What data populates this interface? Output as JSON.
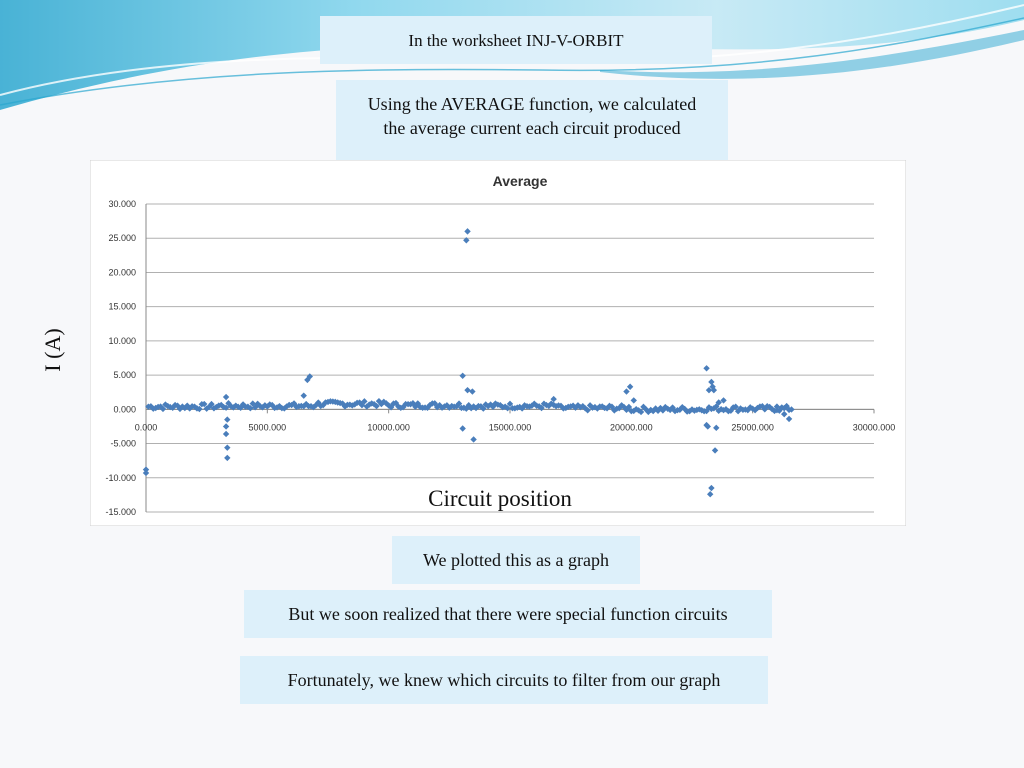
{
  "slide": {
    "header": "In the worksheet INJ-V-ORBIT",
    "description_line1": "Using the AVERAGE function, we calculated",
    "description_line2": "the average current each circuit produced",
    "plotted": "We plotted this as a graph",
    "special": "But we soon realized that there were special function circuits",
    "filter": "Fortunately, we knew which circuits to filter from our graph",
    "y_axis_label": "I (A)",
    "x_axis_label": "Circuit position"
  },
  "colors": {
    "marker": "#4a7ebb",
    "textbox_bg": "#ddf0fa",
    "wave_light": "#bfe7f4",
    "wave_mid": "#7fd3ec",
    "wave_dark": "#2aa6cf"
  },
  "chart_data": {
    "type": "scatter",
    "title": "Average",
    "xlim": [
      0,
      30000
    ],
    "ylim": [
      -15,
      30
    ],
    "x_ticks": [
      "0.000",
      "5000.000",
      "10000.000",
      "15000.000",
      "20000.000",
      "25000.000",
      "30000.000"
    ],
    "y_ticks": [
      "30.000",
      "25.000",
      "20.000",
      "15.000",
      "10.000",
      "5.000",
      "0.000",
      "-5.000",
      "-10.000",
      "-15.000"
    ],
    "grid": "horizontal",
    "legend": "none",
    "outliers": [
      [
        0,
        -8.8
      ],
      [
        0,
        -9.3
      ],
      [
        3300,
        1.8
      ],
      [
        3350,
        -1.5
      ],
      [
        3300,
        -2.5
      ],
      [
        3300,
        -3.6
      ],
      [
        3350,
        -5.6
      ],
      [
        3350,
        -7.1
      ],
      [
        6500,
        2.0
      ],
      [
        6650,
        4.3
      ],
      [
        6750,
        4.8
      ],
      [
        13050,
        4.9
      ],
      [
        13050,
        -2.8
      ],
      [
        13200,
        24.7
      ],
      [
        13250,
        26.0
      ],
      [
        13250,
        2.8
      ],
      [
        13450,
        2.6
      ],
      [
        13500,
        -4.4
      ],
      [
        16800,
        1.5
      ],
      [
        19800,
        2.6
      ],
      [
        19950,
        3.3
      ],
      [
        20100,
        1.3
      ],
      [
        23100,
        6.0
      ],
      [
        23100,
        -2.3
      ],
      [
        23150,
        -2.5
      ],
      [
        23200,
        2.8
      ],
      [
        23300,
        4.0
      ],
      [
        23350,
        3.3
      ],
      [
        23400,
        2.8
      ],
      [
        23500,
        -2.7
      ],
      [
        23600,
        1.0
      ],
      [
        23800,
        1.3
      ],
      [
        23450,
        -6.0
      ],
      [
        23300,
        -11.5
      ],
      [
        23250,
        -12.4
      ],
      [
        26000,
        0.4
      ],
      [
        26300,
        -0.7
      ],
      [
        26500,
        -1.4
      ]
    ],
    "baseline": {
      "x_start": 100,
      "x_end": 26600,
      "step": 100,
      "segments": [
        {
          "from": 0,
          "to": 3000,
          "level": 0.4
        },
        {
          "from": 3000,
          "to": 7000,
          "level": 0.5
        },
        {
          "from": 7000,
          "to": 10000,
          "level": 0.8
        },
        {
          "from": 10000,
          "to": 13000,
          "level": 0.6
        },
        {
          "from": 13000,
          "to": 17000,
          "level": 0.5
        },
        {
          "from": 17000,
          "to": 20000,
          "level": 0.2
        },
        {
          "from": 20000,
          "to": 23000,
          "level": 0.0
        },
        {
          "from": 23000,
          "to": 26600,
          "level": 0.1
        }
      ],
      "spread": 0.4
    }
  }
}
